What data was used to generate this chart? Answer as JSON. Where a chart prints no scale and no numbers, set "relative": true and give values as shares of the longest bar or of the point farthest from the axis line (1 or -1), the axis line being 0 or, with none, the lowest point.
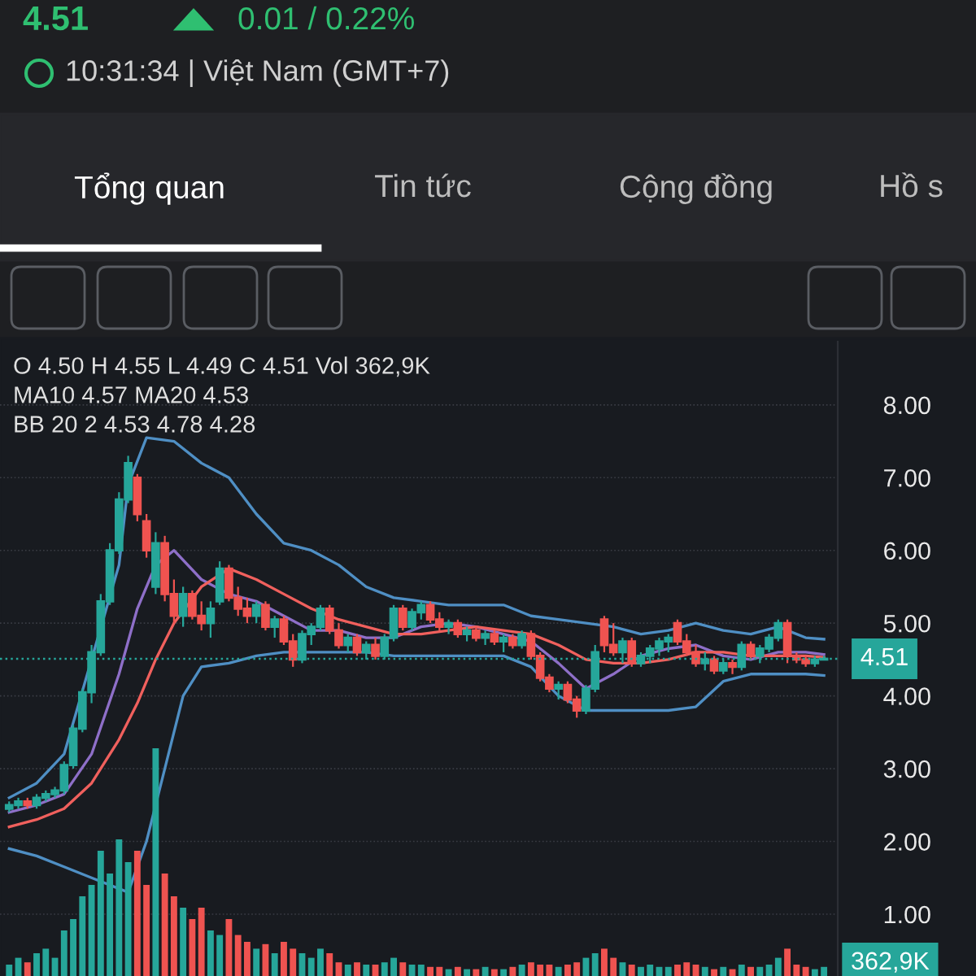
{
  "chart_data": [
    {
      "type": "candlestick",
      "title": "4.51",
      "annotations": [
        "0.01 / 0.22%",
        "10:31:34 | Việt Nam (GMT+7)",
        "Tổng quan",
        "Tin tức",
        "Cộng đồng",
        "Hồ s",
        "O 4.50 H 4.55 L 4.49 C 4.51 Vol 362,9K",
        "MA10 4.57 MA20 4.53",
        "BB 20 2 4.53 4.78 4.28"
      ],
      "categories": [
        null,
        null,
        null,
        null,
        null,
        null,
        null,
        null,
        null,
        null,
        null,
        null,
        null,
        null,
        null,
        null,
        null,
        null,
        null,
        null,
        null,
        null,
        null,
        null,
        null,
        null,
        null,
        null,
        null,
        null,
        null,
        null,
        null,
        null,
        null,
        null,
        null,
        null,
        null,
        null,
        null,
        null,
        null,
        null,
        null,
        null,
        null,
        null,
        null,
        null,
        null,
        null,
        null,
        null,
        null,
        null,
        null,
        null,
        null,
        null,
        null,
        null,
        null,
        null,
        null,
        null,
        null,
        null,
        null,
        null,
        null,
        null,
        null,
        null,
        null,
        null,
        null,
        null,
        null,
        null,
        null,
        null,
        null,
        null,
        null,
        null,
        null,
        null,
        null,
        null
      ],
      "ohlc": [
        [
          2.45,
          2.55,
          2.4,
          2.5
        ],
        [
          2.5,
          2.6,
          2.45,
          2.55
        ],
        [
          2.55,
          2.6,
          2.45,
          2.5
        ],
        [
          2.5,
          2.65,
          2.45,
          2.6
        ],
        [
          2.6,
          2.7,
          2.55,
          2.65
        ],
        [
          2.65,
          2.75,
          2.6,
          2.7
        ],
        [
          2.7,
          3.1,
          2.65,
          3.05
        ],
        [
          3.05,
          3.6,
          3.0,
          3.55
        ],
        [
          3.55,
          4.1,
          3.5,
          4.05
        ],
        [
          4.05,
          4.7,
          3.9,
          4.6
        ],
        [
          4.6,
          5.4,
          4.55,
          5.3
        ],
        [
          5.3,
          6.1,
          5.25,
          6.0
        ],
        [
          6.0,
          6.8,
          5.95,
          6.7
        ],
        [
          6.7,
          7.3,
          6.65,
          7.2
        ],
        [
          7.0,
          7.05,
          6.4,
          6.5
        ],
        [
          6.4,
          6.5,
          5.9,
          6.0
        ],
        [
          5.5,
          6.25,
          5.4,
          6.1
        ],
        [
          6.1,
          6.2,
          5.3,
          5.4
        ],
        [
          5.4,
          5.6,
          5.0,
          5.1
        ],
        [
          5.1,
          5.5,
          4.95,
          5.4
        ],
        [
          5.4,
          5.45,
          5.05,
          5.1
        ],
        [
          5.1,
          5.3,
          4.9,
          5.0
        ],
        [
          5.0,
          5.3,
          4.8,
          5.2
        ],
        [
          5.3,
          5.85,
          5.25,
          5.75
        ],
        [
          5.75,
          5.8,
          5.3,
          5.35
        ],
        [
          5.35,
          5.5,
          5.1,
          5.2
        ],
        [
          5.2,
          5.35,
          5.0,
          5.1
        ],
        [
          5.1,
          5.3,
          5.0,
          5.25
        ],
        [
          5.25,
          5.3,
          4.9,
          4.95
        ],
        [
          4.95,
          5.1,
          4.8,
          5.05
        ],
        [
          5.05,
          5.1,
          4.7,
          4.75
        ],
        [
          4.75,
          4.85,
          4.4,
          4.5
        ],
        [
          4.5,
          4.9,
          4.45,
          4.85
        ],
        [
          4.85,
          5.0,
          4.7,
          4.95
        ],
        [
          4.95,
          5.25,
          4.9,
          5.2
        ],
        [
          5.2,
          5.25,
          4.85,
          4.9
        ],
        [
          4.9,
          5.0,
          4.65,
          4.7
        ],
        [
          4.7,
          4.85,
          4.6,
          4.8
        ],
        [
          4.8,
          4.85,
          4.55,
          4.6
        ],
        [
          4.6,
          4.75,
          4.5,
          4.7
        ],
        [
          4.7,
          4.8,
          4.5,
          4.55
        ],
        [
          4.55,
          4.85,
          4.5,
          4.8
        ],
        [
          4.8,
          5.25,
          4.75,
          5.2
        ],
        [
          5.2,
          5.25,
          4.9,
          4.95
        ],
        [
          4.95,
          5.2,
          4.9,
          5.15
        ],
        [
          5.15,
          5.3,
          5.05,
          5.25
        ],
        [
          5.25,
          5.3,
          5.0,
          5.05
        ],
        [
          5.05,
          5.15,
          4.9,
          4.95
        ],
        [
          4.95,
          5.05,
          4.85,
          5.0
        ],
        [
          5.0,
          5.05,
          4.8,
          4.85
        ],
        [
          4.85,
          4.95,
          4.75,
          4.9
        ],
        [
          4.9,
          4.95,
          4.75,
          4.8
        ],
        [
          4.8,
          4.9,
          4.7,
          4.85
        ],
        [
          4.85,
          4.9,
          4.7,
          4.75
        ],
        [
          4.75,
          4.85,
          4.6,
          4.8
        ],
        [
          4.8,
          4.85,
          4.65,
          4.7
        ],
        [
          4.7,
          4.9,
          4.65,
          4.85
        ],
        [
          4.85,
          4.9,
          4.5,
          4.55
        ],
        [
          4.55,
          4.6,
          4.2,
          4.25
        ],
        [
          4.25,
          4.3,
          4.05,
          4.1
        ],
        [
          4.1,
          4.2,
          3.95,
          4.15
        ],
        [
          4.15,
          4.2,
          3.9,
          3.95
        ],
        [
          3.95,
          4.0,
          3.7,
          3.8
        ],
        [
          3.8,
          4.15,
          3.75,
          4.1
        ],
        [
          4.1,
          4.7,
          4.05,
          4.6
        ],
        [
          5.05,
          5.1,
          4.6,
          4.7
        ],
        [
          4.7,
          5.0,
          4.55,
          4.6
        ],
        [
          4.6,
          4.8,
          4.45,
          4.75
        ],
        [
          4.75,
          4.8,
          4.4,
          4.45
        ],
        [
          4.45,
          4.6,
          4.4,
          4.55
        ],
        [
          4.55,
          4.7,
          4.45,
          4.65
        ],
        [
          4.65,
          4.8,
          4.55,
          4.75
        ],
        [
          4.75,
          4.85,
          4.6,
          4.8
        ],
        [
          5.0,
          5.05,
          4.7,
          4.75
        ],
        [
          4.75,
          4.85,
          4.55,
          4.6
        ],
        [
          4.6,
          4.7,
          4.4,
          4.45
        ],
        [
          4.45,
          4.6,
          4.35,
          4.5
        ],
        [
          4.5,
          4.55,
          4.3,
          4.35
        ],
        [
          4.35,
          4.5,
          4.3,
          4.45
        ],
        [
          4.45,
          4.5,
          4.3,
          4.4
        ],
        [
          4.4,
          4.75,
          4.35,
          4.7
        ],
        [
          4.7,
          4.75,
          4.5,
          4.55
        ],
        [
          4.55,
          4.7,
          4.45,
          4.65
        ],
        [
          4.65,
          4.85,
          4.6,
          4.8
        ],
        [
          4.8,
          5.05,
          4.75,
          5.0
        ],
        [
          5.0,
          5.05,
          4.45,
          4.55
        ],
        [
          4.55,
          4.6,
          4.45,
          4.5
        ],
        [
          4.5,
          4.55,
          4.4,
          4.45
        ],
        [
          4.45,
          4.55,
          4.4,
          4.5
        ],
        [
          4.5,
          4.55,
          4.49,
          4.51
        ]
      ],
      "colors": [
        "#26a69a",
        "#26a69a",
        "#ef5350",
        "#26a69a",
        "#26a69a",
        "#26a69a",
        "#26a69a",
        "#26a69a",
        "#26a69a",
        "#26a69a",
        "#26a69a",
        "#26a69a",
        "#26a69a",
        "#26a69a",
        "#ef5350",
        "#ef5350",
        "#26a69a",
        "#ef5350",
        "#ef5350",
        "#26a69a",
        "#ef5350",
        "#ef5350",
        "#26a69a",
        "#26a69a",
        "#ef5350",
        "#ef5350",
        "#ef5350",
        "#26a69a",
        "#ef5350",
        "#26a69a",
        "#ef5350",
        "#ef5350",
        "#26a69a",
        "#26a69a",
        "#26a69a",
        "#ef5350",
        "#ef5350",
        "#26a69a",
        "#ef5350",
        "#26a69a",
        "#ef5350",
        "#26a69a",
        "#26a69a",
        "#ef5350",
        "#26a69a",
        "#26a69a",
        "#ef5350",
        "#ef5350",
        "#26a69a",
        "#ef5350",
        "#26a69a",
        "#ef5350",
        "#26a69a",
        "#ef5350",
        "#26a69a",
        "#ef5350",
        "#26a69a",
        "#ef5350",
        "#ef5350",
        "#ef5350",
        "#26a69a",
        "#ef5350",
        "#ef5350",
        "#26a69a",
        "#26a69a",
        "#ef5350",
        "#ef5350",
        "#26a69a",
        "#ef5350",
        "#26a69a",
        "#26a69a",
        "#26a69a",
        "#26a69a",
        "#ef5350",
        "#ef5350",
        "#ef5350",
        "#26a69a",
        "#ef5350",
        "#26a69a",
        "#ef5350",
        "#26a69a",
        "#ef5350",
        "#26a69a",
        "#26a69a",
        "#26a69a",
        "#ef5350",
        "#ef5350",
        "#ef5350",
        "#26a69a",
        "#26a69a"
      ],
      "series": [
        {
          "type": "line",
          "color": "#4f8fc4",
          "values": [
            2.6,
            null,
            null,
            2.8,
            null,
            null,
            3.2,
            null,
            null,
            null,
            null,
            null,
            5.8,
            6.9,
            null,
            7.55,
            null,
            null,
            7.5,
            null,
            null,
            7.2,
            null,
            null,
            7.0,
            null,
            null,
            6.5,
            null,
            null,
            6.1,
            null,
            null,
            6.0,
            null,
            null,
            5.8,
            null,
            null,
            5.5,
            null,
            null,
            5.35,
            null,
            null,
            5.3,
            null,
            null,
            5.25,
            null,
            null,
            5.25,
            null,
            null,
            5.25,
            null,
            null,
            5.1,
            null,
            null,
            5.05,
            null,
            null,
            5.0,
            null,
            null,
            4.95,
            null,
            null,
            4.85,
            null,
            null,
            4.9,
            null,
            null,
            5.0,
            null,
            null,
            4.9,
            null,
            null,
            4.85,
            null,
            null,
            4.95,
            null,
            null,
            4.8,
            null,
            4.78
          ]
        },
        {
          "type": "line",
          "color": "#4f8fc4",
          "values": [
            1.9,
            null,
            null,
            1.8,
            null,
            null,
            1.65,
            null,
            null,
            1.5,
            null,
            null,
            1.35,
            1.3,
            null,
            2.0,
            null,
            3.0,
            null,
            4.0,
            null,
            4.4,
            null,
            null,
            4.45,
            null,
            null,
            4.55,
            null,
            null,
            4.6,
            null,
            null,
            4.6,
            null,
            null,
            4.6,
            null,
            null,
            4.6,
            null,
            null,
            4.55,
            null,
            null,
            4.55,
            null,
            null,
            4.55,
            null,
            null,
            4.55,
            null,
            null,
            4.55,
            null,
            null,
            4.4,
            null,
            null,
            4.0,
            null,
            null,
            3.8,
            null,
            null,
            3.8,
            null,
            null,
            3.8,
            null,
            null,
            3.8,
            null,
            null,
            3.85,
            null,
            null,
            4.2,
            null,
            null,
            4.3,
            null,
            null,
            4.3,
            null,
            null,
            4.3,
            null,
            4.28
          ]
        },
        {
          "type": "line",
          "color": "#8e6fc8",
          "values": [
            2.4,
            null,
            null,
            2.5,
            null,
            null,
            2.65,
            null,
            null,
            3.2,
            null,
            null,
            4.3,
            null,
            5.2,
            null,
            5.8,
            null,
            6.0,
            null,
            null,
            5.6,
            null,
            null,
            5.4,
            null,
            null,
            5.3,
            null,
            null,
            5.1,
            null,
            null,
            4.9,
            null,
            null,
            4.9,
            null,
            null,
            4.8,
            null,
            null,
            4.8,
            null,
            null,
            4.95,
            null,
            null,
            5.0,
            null,
            null,
            4.95,
            null,
            null,
            4.85,
            null,
            null,
            4.75,
            null,
            null,
            4.45,
            null,
            null,
            4.1,
            null,
            null,
            4.3,
            null,
            null,
            4.55,
            null,
            null,
            4.65,
            null,
            null,
            4.7,
            null,
            null,
            4.55,
            null,
            null,
            4.5,
            null,
            null,
            4.6,
            null,
            null,
            4.6,
            null,
            4.57
          ]
        },
        {
          "type": "line",
          "color": "#f0605d",
          "values": [
            2.2,
            null,
            null,
            2.3,
            null,
            null,
            2.45,
            null,
            null,
            2.8,
            null,
            null,
            3.4,
            null,
            3.9,
            null,
            4.5,
            null,
            5.0,
            null,
            null,
            5.5,
            null,
            null,
            5.75,
            null,
            null,
            5.6,
            null,
            null,
            5.4,
            null,
            null,
            5.2,
            null,
            null,
            5.05,
            null,
            null,
            4.95,
            null,
            null,
            4.85,
            null,
            null,
            4.85,
            null,
            null,
            4.9,
            null,
            null,
            4.95,
            null,
            null,
            4.9,
            null,
            null,
            4.85,
            null,
            null,
            4.7,
            null,
            null,
            4.5,
            null,
            null,
            4.45,
            null,
            null,
            4.45,
            null,
            null,
            4.5,
            null,
            null,
            4.6,
            null,
            null,
            4.6,
            null,
            null,
            4.55,
            null,
            null,
            4.55,
            null,
            null,
            4.55,
            null,
            4.53
          ]
        }
      ],
      "ylim": [
        0.15,
        8.87
      ],
      "yticks": [
        {
          "value": 1,
          "label": "1.00"
        },
        {
          "value": 2,
          "label": "2.00"
        },
        {
          "value": 3,
          "label": "3.00"
        },
        {
          "value": 4,
          "label": "4.00"
        },
        {
          "value": 5,
          "label": "5.00"
        },
        {
          "value": 6,
          "label": "6.00"
        },
        {
          "value": 7,
          "label": "7.00"
        },
        {
          "value": 8,
          "label": "8.00"
        }
      ],
      "ref_lines": [
        {
          "axis": "y",
          "value": 4.51,
          "label": "4.51",
          "color": "#26a69a",
          "line_style": "dotted"
        }
      ],
      "grid": "y",
      "tick_labels": "y"
    },
    {
      "type": "bar",
      "relative": true,
      "annotations": [
        "362,9K"
      ],
      "categories": [
        null,
        null,
        null,
        null,
        null,
        null,
        null,
        null,
        null,
        null,
        null,
        null,
        null,
        null,
        null,
        null,
        null,
        null,
        null,
        null,
        null,
        null,
        null,
        null,
        null,
        null,
        null,
        null,
        null,
        null,
        null,
        null,
        null,
        null,
        null,
        null,
        null,
        null,
        null,
        null,
        null,
        null,
        null,
        null,
        null,
        null,
        null,
        null,
        null,
        null,
        null,
        null,
        null,
        null,
        null,
        null,
        null,
        null,
        null,
        null,
        null,
        null,
        null,
        null,
        null,
        null,
        null,
        null,
        null,
        null,
        null,
        null,
        null,
        null,
        null,
        null,
        null,
        null,
        null,
        null,
        null,
        null,
        null,
        null,
        null,
        null,
        null,
        null,
        null,
        null
      ],
      "values": [
        0.05,
        0.08,
        0.06,
        0.1,
        0.12,
        0.08,
        0.2,
        0.25,
        0.35,
        0.4,
        0.55,
        0.45,
        0.6,
        0.5,
        0.55,
        0.4,
        1.0,
        0.45,
        0.35,
        0.3,
        0.25,
        0.3,
        0.2,
        0.18,
        0.25,
        0.18,
        0.15,
        0.12,
        0.14,
        0.1,
        0.15,
        0.12,
        0.1,
        0.08,
        0.12,
        0.1,
        0.06,
        0.05,
        0.06,
        0.05,
        0.05,
        0.06,
        0.08,
        0.06,
        0.05,
        0.05,
        0.04,
        0.04,
        0.03,
        0.04,
        0.03,
        0.03,
        0.04,
        0.03,
        0.03,
        0.04,
        0.05,
        0.06,
        0.05,
        0.05,
        0.04,
        0.05,
        0.06,
        0.08,
        0.1,
        0.12,
        0.08,
        0.06,
        0.05,
        0.04,
        0.05,
        0.04,
        0.04,
        0.05,
        0.06,
        0.05,
        0.04,
        0.03,
        0.04,
        0.03,
        0.05,
        0.04,
        0.04,
        0.05,
        0.08,
        0.12,
        0.05,
        0.04,
        0.03,
        0.04
      ],
      "colors": [
        "#26a69a",
        "#26a69a",
        "#ef5350",
        "#26a69a",
        "#26a69a",
        "#26a69a",
        "#26a69a",
        "#26a69a",
        "#26a69a",
        "#26a69a",
        "#26a69a",
        "#26a69a",
        "#26a69a",
        "#26a69a",
        "#ef5350",
        "#ef5350",
        "#26a69a",
        "#ef5350",
        "#ef5350",
        "#26a69a",
        "#ef5350",
        "#ef5350",
        "#26a69a",
        "#26a69a",
        "#ef5350",
        "#ef5350",
        "#ef5350",
        "#26a69a",
        "#ef5350",
        "#26a69a",
        "#ef5350",
        "#ef5350",
        "#26a69a",
        "#26a69a",
        "#26a69a",
        "#ef5350",
        "#ef5350",
        "#26a69a",
        "#ef5350",
        "#26a69a",
        "#ef5350",
        "#26a69a",
        "#26a69a",
        "#ef5350",
        "#26a69a",
        "#26a69a",
        "#ef5350",
        "#ef5350",
        "#26a69a",
        "#ef5350",
        "#26a69a",
        "#ef5350",
        "#26a69a",
        "#ef5350",
        "#26a69a",
        "#ef5350",
        "#26a69a",
        "#ef5350",
        "#ef5350",
        "#ef5350",
        "#26a69a",
        "#ef5350",
        "#ef5350",
        "#26a69a",
        "#26a69a",
        "#ef5350",
        "#ef5350",
        "#26a69a",
        "#ef5350",
        "#26a69a",
        "#26a69a",
        "#26a69a",
        "#26a69a",
        "#ef5350",
        "#ef5350",
        "#ef5350",
        "#26a69a",
        "#ef5350",
        "#26a69a",
        "#ef5350",
        "#26a69a",
        "#ef5350",
        "#26a69a",
        "#26a69a",
        "#26a69a",
        "#ef5350",
        "#ef5350",
        "#ef5350",
        "#26a69a",
        "#26a69a"
      ]
    }
  ]
}
